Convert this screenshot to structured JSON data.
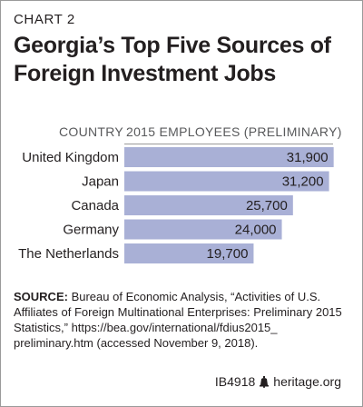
{
  "chart_label": "CHART 2",
  "title": "Georgia’s Top Five Sources of Foreign Investment Jobs",
  "colors": {
    "bar": "#a9b0d6",
    "text": "#231f20",
    "header_text": "#58595b"
  },
  "chart_data": {
    "type": "bar",
    "orientation": "horizontal",
    "category_header": "COUNTRY",
    "value_header": "2015 EMPLOYEES (PRELIMINARY)",
    "categories": [
      "United Kingdom",
      "Japan",
      "Canada",
      "Germany",
      "The Netherlands"
    ],
    "values": [
      31900,
      31200,
      25700,
      24000,
      19700
    ],
    "value_labels": [
      "31,900",
      "31,200",
      "25,700",
      "24,000",
      "19,700"
    ],
    "xlim": [
      0,
      32500
    ]
  },
  "source": {
    "label": "SOURCE:",
    "text": "Bureau of Economic Analysis, “Activities of U.S. Affiliates of Foreign Multinational Enterprises: Preliminary 2015 Statistics,” https://bea.gov/international/fdius2015_ preliminary.htm (accessed November 9, 2018)."
  },
  "footer": {
    "code": "IB4918",
    "logo_icon": "liberty-bell-icon",
    "site": "heritage.org"
  }
}
